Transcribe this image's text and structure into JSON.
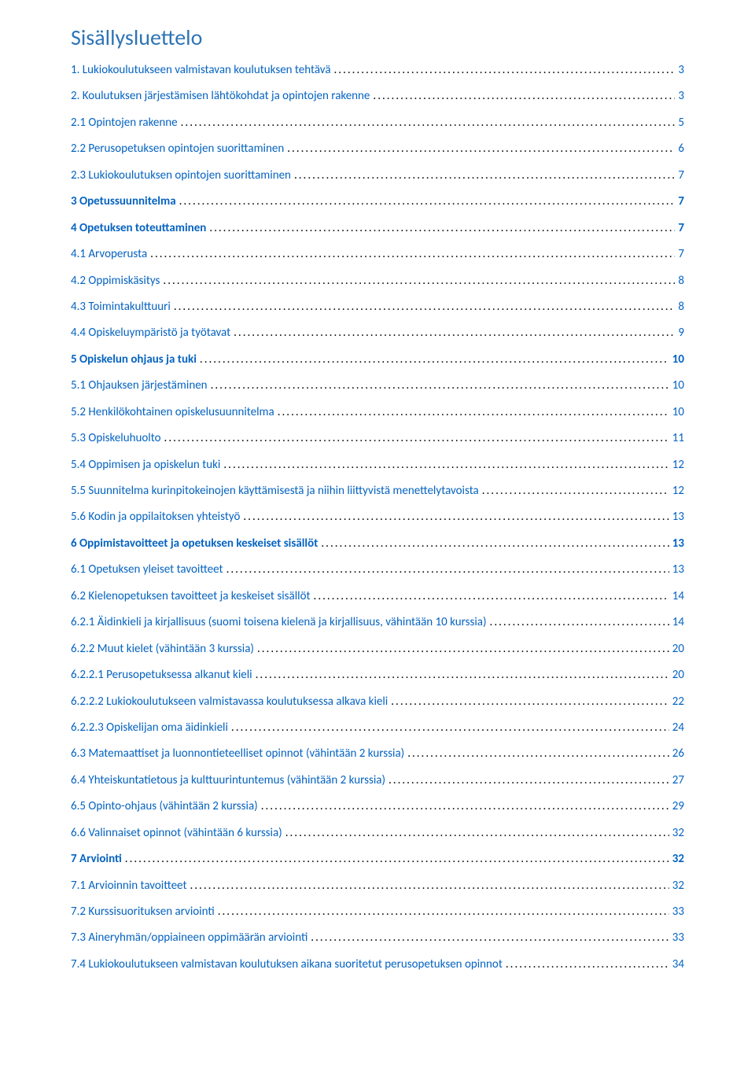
{
  "title": {
    "text": "Sisällysluettelo",
    "color": "#2e74b5"
  },
  "link_color": "#0563c1",
  "text_color": "#000000",
  "entries": [
    {
      "label": "1.    Lukiokoulutukseen valmistavan koulutuksen tehtävä",
      "page": "3",
      "bold": false,
      "link": true
    },
    {
      "label": "2.    Koulutuksen järjestämisen lähtökohdat ja opintojen rakenne",
      "page": "3",
      "bold": false,
      "link": true
    },
    {
      "label": "2.1 Opintojen rakenne",
      "page": "5",
      "bold": false,
      "link": true
    },
    {
      "label": "2.2 Perusopetuksen opintojen suorittaminen",
      "page": "6",
      "bold": false,
      "link": true
    },
    {
      "label": "2.3 Lukiokoulutuksen opintojen suorittaminen",
      "page": "7",
      "bold": false,
      "link": true
    },
    {
      "label": "3 Opetussuunnitelma",
      "page": "7",
      "bold": true,
      "link": true
    },
    {
      "label": "4 Opetuksen toteuttaminen",
      "page": "7",
      "bold": true,
      "link": true
    },
    {
      "label": "4.1 Arvoperusta",
      "page": "7",
      "bold": false,
      "link": true
    },
    {
      "label": "4.2 Oppimiskäsitys",
      "page": "8",
      "bold": false,
      "link": true
    },
    {
      "label": "4.3 Toimintakulttuuri",
      "page": "8",
      "bold": false,
      "link": true
    },
    {
      "label": "4.4 Opiskeluympäristö ja työtavat",
      "page": "9",
      "bold": false,
      "link": true
    },
    {
      "label": "5 Opiskelun ohjaus ja tuki",
      "page": "10",
      "bold": true,
      "link": true
    },
    {
      "label": "5.1 Ohjauksen järjestäminen",
      "page": "10",
      "bold": false,
      "link": true
    },
    {
      "label": "5.2 Henkilökohtainen opiskelusuunnitelma",
      "page": "10",
      "bold": false,
      "link": true
    },
    {
      "label": "5.3 Opiskeluhuolto",
      "page": "11",
      "bold": false,
      "link": true
    },
    {
      "label": "5.4 Oppimisen ja opiskelun tuki",
      "page": "12",
      "bold": false,
      "link": true
    },
    {
      "label": "5.5 Suunnitelma kurinpitokeinojen käyttämisestä ja niihin liittyvistä menettelytavoista",
      "page": "12",
      "bold": false,
      "link": true
    },
    {
      "label": "5.6 Kodin ja oppilaitoksen yhteistyö",
      "page": "13",
      "bold": false,
      "link": true
    },
    {
      "label": "6 Oppimistavoitteet ja opetuksen keskeiset sisällöt",
      "page": "13",
      "bold": true,
      "link": true
    },
    {
      "label": "6.1 Opetuksen yleiset tavoitteet",
      "page": "13",
      "bold": false,
      "link": true
    },
    {
      "label": "6.2 Kielenopetuksen tavoitteet ja keskeiset sisällöt",
      "page": "14",
      "bold": false,
      "link": true
    },
    {
      "label": "6.2.1 Äidinkieli ja kirjallisuus (suomi toisena kielenä ja kirjallisuus, vähintään 10 kurssia)",
      "page": "14",
      "bold": false,
      "link": true
    },
    {
      "label": "6.2.2 Muut kielet (vähintään 3 kurssia)",
      "page": "20",
      "bold": false,
      "link": true
    },
    {
      "label": "6.2.2.1 Perusopetuksessa alkanut kieli",
      "page": "20",
      "bold": false,
      "link": true
    },
    {
      "label": "6.2.2.2 Lukiokoulutukseen valmistavassa koulutuksessa alkava kieli",
      "page": "22",
      "bold": false,
      "link": true
    },
    {
      "label": "6.2.2.3 Opiskelijan oma äidinkieli",
      "page": "24",
      "bold": false,
      "link": true
    },
    {
      "label": "6.3 Matemaattiset ja luonnontieteelliset opinnot (vähintään 2 kurssia)",
      "page": "26",
      "bold": false,
      "link": true
    },
    {
      "label": "6.4 Yhteiskuntatietous ja kulttuurintuntemus (vähintään 2 kurssia)",
      "page": "27",
      "bold": false,
      "link": true
    },
    {
      "label": "6.5 Opinto-ohjaus (vähintään 2 kurssia)",
      "page": "29",
      "bold": false,
      "link": true
    },
    {
      "label": "6.6 Valinnaiset opinnot (vähintään 6 kurssia)",
      "page": "32",
      "bold": false,
      "link": true
    },
    {
      "label": "7 Arviointi",
      "page": "32",
      "bold": true,
      "link": true
    },
    {
      "label": "7.1 Arvioinnin tavoitteet",
      "page": "32",
      "bold": false,
      "link": true
    },
    {
      "label": "7.2 Kurssisuorituksen arviointi",
      "page": "33",
      "bold": false,
      "link": true
    },
    {
      "label": "7.3 Aineryhmän/oppiaineen oppimäärän arviointi",
      "page": "33",
      "bold": false,
      "link": true
    },
    {
      "label": "7.4 Lukiokoulutukseen valmistavan koulutuksen aikana suoritetut perusopetuksen opinnot",
      "page": "34",
      "bold": false,
      "link": true
    }
  ]
}
